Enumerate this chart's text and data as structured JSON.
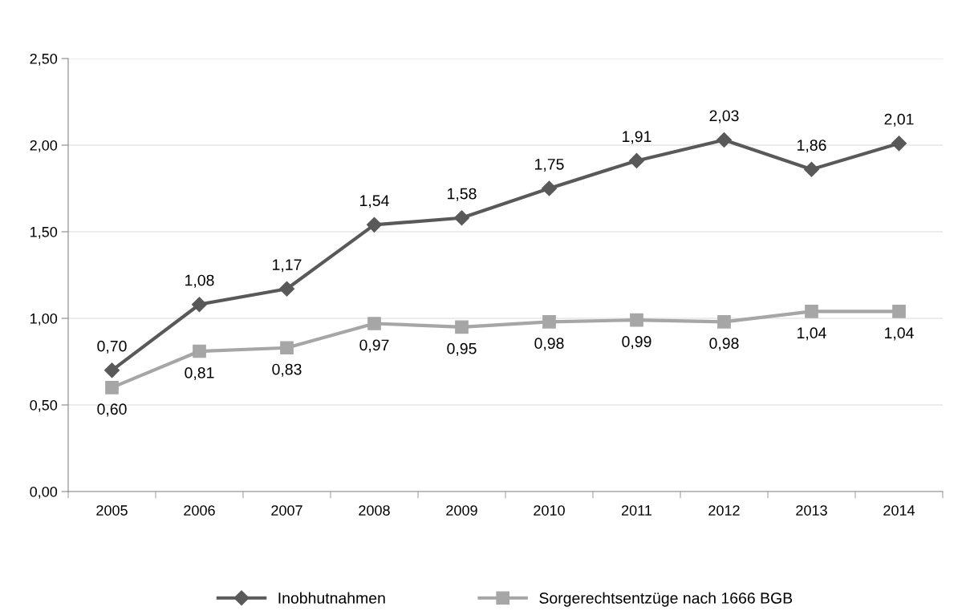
{
  "chart_data": {
    "type": "line",
    "categories": [
      "2005",
      "2006",
      "2007",
      "2008",
      "2009",
      "2010",
      "2011",
      "2012",
      "2013",
      "2014"
    ],
    "series": [
      {
        "name": "Inobhutnahmen",
        "color": "#595959",
        "marker": "diamond",
        "values": [
          0.7,
          1.08,
          1.17,
          1.54,
          1.58,
          1.75,
          1.91,
          2.03,
          1.86,
          2.01
        ]
      },
      {
        "name": "Sorgerechtsentzüge nach 1666 BGB",
        "color": "#a6a6a6",
        "marker": "square",
        "values": [
          0.6,
          0.81,
          0.83,
          0.97,
          0.95,
          0.98,
          0.99,
          0.98,
          1.04,
          1.04
        ]
      }
    ],
    "value_labels": [
      [
        "0,70",
        "1,08",
        "1,17",
        "1,54",
        "1,58",
        "1,75",
        "1,91",
        "2,03",
        "1,86",
        "2,01"
      ],
      [
        "0,60",
        "0,81",
        "0,83",
        "0,97",
        "0,95",
        "0,98",
        "0,99",
        "0,98",
        "1,04",
        "1,04"
      ]
    ],
    "ylim": [
      0,
      2.5
    ],
    "yticks": [
      {
        "value": 0,
        "label": "0,00"
      },
      {
        "value": 0.5,
        "label": "0,50"
      },
      {
        "value": 1.0,
        "label": "1,00"
      },
      {
        "value": 1.5,
        "label": "1,50"
      },
      {
        "value": 2.0,
        "label": "2,00"
      },
      {
        "value": 2.5,
        "label": "2,50"
      }
    ],
    "grid": "y",
    "legend": "bottom",
    "line_style": "solid"
  }
}
